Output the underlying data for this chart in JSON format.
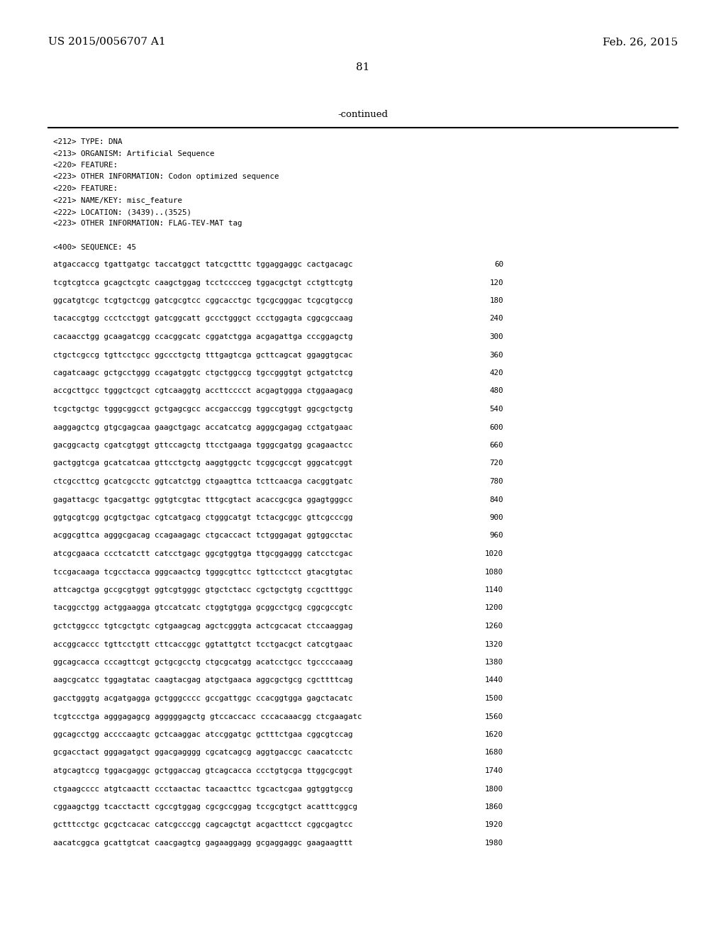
{
  "background_color": "#ffffff",
  "top_left_text": "US 2015/0056707 A1",
  "top_right_text": "Feb. 26, 2015",
  "page_number": "81",
  "continued_text": "-continued",
  "header_lines": [
    "<212> TYPE: DNA",
    "<213> ORGANISM: Artificial Sequence",
    "<220> FEATURE:",
    "<223> OTHER INFORMATION: Codon optimized sequence",
    "<220> FEATURE:",
    "<221> NAME/KEY: misc_feature",
    "<222> LOCATION: (3439)..(3525)",
    "<223> OTHER INFORMATION: FLAG-TEV-MAT tag",
    "",
    "<400> SEQUENCE: 45"
  ],
  "sequence_lines": [
    [
      "atgaccaccg tgattgatgc taccatggct tatcgctttc tggaggaggc cactgacagc",
      "60"
    ],
    [
      "tcgtcgtcca gcagctcgtc caagctggag tcctcccceg tggacgctgt cctgttcgtg",
      "120"
    ],
    [
      "ggcatgtcgc tcgtgctcgg gatcgcgtcc cggcacctgc tgcgcgggac tcgcgtgccg",
      "180"
    ],
    [
      "tacaccgtgg ccctcctggt gatcggcatt gccctgggct ccctggagta cggcgccaag",
      "240"
    ],
    [
      "cacaacctgg gcaagatcgg ccacggcatc cggatctgga acgagattga cccggagctg",
      "300"
    ],
    [
      "ctgctcgccg tgttcctgcc ggccctgctg tttgagtcga gcttcagcat ggaggtgcac",
      "360"
    ],
    [
      "cagatcaagc gctgcctggg ccagatggtc ctgctggccg tgccgggtgt gctgatctcg",
      "420"
    ],
    [
      "accgcttgcc tgggctcgct cgtcaaggtg accttcccct acgagtggga ctggaagacg",
      "480"
    ],
    [
      "tcgctgctgc tgggcggcct gctgagcgcc accgacccgg tggccgtggt ggcgctgctg",
      "540"
    ],
    [
      "aaggagctcg gtgcgagcaa gaagctgagc accatcatcg agggcgagag cctgatgaac",
      "600"
    ],
    [
      "gacggcactg cgatcgtggt gttccagctg ttcctgaaga tgggcgatgg gcagaactcc",
      "660"
    ],
    [
      "gactggtcga gcatcatcaa gttcctgctg aaggtggctc tcggcgccgt gggcatcggt",
      "720"
    ],
    [
      "ctcgccttcg gcatcgcctc ggtcatctgg ctgaagttca tcttcaacga cacggtgatc",
      "780"
    ],
    [
      "gagattacgc tgacgattgc ggtgtcgtac tttgcgtact acaccgcgca ggagtgggcc",
      "840"
    ],
    [
      "ggtgcgtcgg gcgtgctgac cgtcatgacg ctgggcatgt tctacgcggc gttcgcccgg",
      "900"
    ],
    [
      "acggcgttca agggcgacag ccagaagagc ctgcaccact tctgggagat ggtggcctac",
      "960"
    ],
    [
      "atcgcgaaca ccctcatctt catcctgagc ggcgtggtga ttgcggaggg catcctcgac",
      "1020"
    ],
    [
      "tccgacaaga tcgcctacca gggcaactcg tgggcgttcc tgttcctcct gtacgtgtac",
      "1080"
    ],
    [
      "attcagctga gccgcgtggt ggtcgtgggc gtgctctacc cgctgctgtg ccgctttggc",
      "1140"
    ],
    [
      "tacggcctgg actggaagga gtccatcatc ctggtgtgga gcggcctgcg cggcgccgtc",
      "1200"
    ],
    [
      "gctctggccc tgtcgctgtc cgtgaagcag agctcgggta actcgcacat ctccaaggag",
      "1260"
    ],
    [
      "accggcaccc tgttcctgtt cttcaccggc ggtattgtct tcctgacgct catcgtgaac",
      "1320"
    ],
    [
      "ggcagcacca cccagttcgt gctgcgcctg ctgcgcatgg acatcctgcc tgccccaaag",
      "1380"
    ],
    [
      "aagcgcatcc tggagtatac caagtacgag atgctgaaca aggcgctgcg cgcttttcag",
      "1440"
    ],
    [
      "gacctgggtg acgatgagga gctgggcccc gccgattggc ccacggtgga gagctacatc",
      "1500"
    ],
    [
      "tcgtccctga agggagagcg agggggagctg gtccaccacc cccacaaacgg ctcgaagatc",
      "1560"
    ],
    [
      "ggcagcctgg accccaagtc gctcaaggac atccggatgc gctttctgaa cggcgtccag",
      "1620"
    ],
    [
      "gcgacctact gggagatgct ggacgagggg cgcatcagcg aggtgaccgc caacatcctc",
      "1680"
    ],
    [
      "atgcagtccg tggacgaggc gctggaccag gtcagcacca ccctgtgcga ttggcgcggt",
      "1740"
    ],
    [
      "ctgaagcccc atgtcaactt ccctaactac tacaacttcc tgcactcgaa ggtggtgccg",
      "1800"
    ],
    [
      "cggaagctgg tcacctactt cgccgtggag cgcgccggag tccgcgtgct acatttcggcg",
      "1860"
    ],
    [
      "gctttcctgc gcgctcacac catcgcccgg cagcagctgt acgacttcct cggcgagtcc",
      "1920"
    ],
    [
      "aacatcggca gcattgtcat caacgagtcg gagaaggagg gcgaggaggc gaagaagttt",
      "1980"
    ]
  ]
}
